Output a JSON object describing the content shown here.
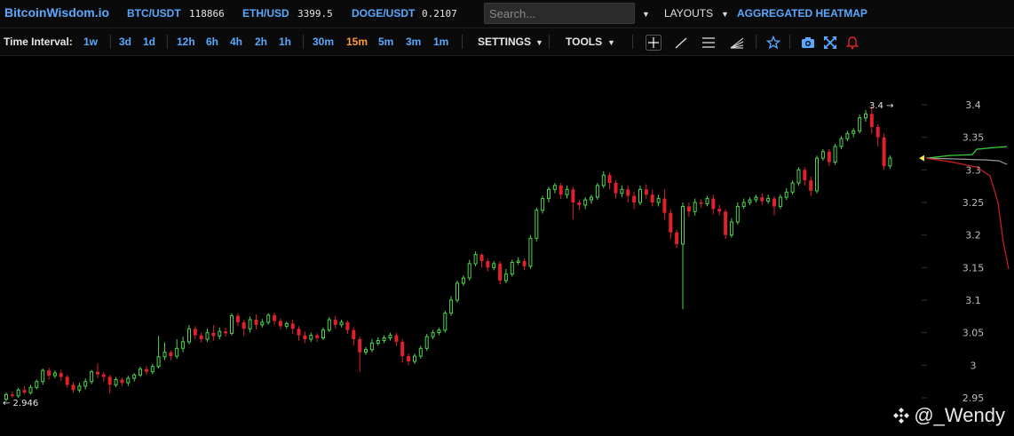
{
  "header": {
    "logo": "BitcoinWisdom.io",
    "tickers": [
      {
        "name": "BTC/USDT",
        "value": "118866"
      },
      {
        "name": "ETH/USD",
        "value": "3399.5"
      },
      {
        "name": "DOGE/USDT",
        "value": "0.2107"
      }
    ],
    "search_placeholder": "Search...",
    "layouts_label": "LAYOUTS",
    "heatmap_label": "AGGREGATED HEATMAP"
  },
  "toolbar": {
    "time_interval_label": "Time Interval:",
    "intervals": [
      "1w",
      "3d",
      "1d",
      "12h",
      "6h",
      "4h",
      "2h",
      "1h",
      "30m",
      "15m",
      "5m",
      "3m",
      "1m"
    ],
    "active_interval": "15m",
    "settings_label": "SETTINGS",
    "tools_label": "TOOLS",
    "icons": [
      "crosshair-icon",
      "line-icon",
      "horizontal-lines-icon",
      "fib-fan-icon",
      "star-icon",
      "camera-icon",
      "fullscreen-icon",
      "alarm-icon"
    ]
  },
  "colors": {
    "up": "#4cd44c",
    "down": "#e0202a",
    "accent": "#5aa9ff",
    "active_interval": "#ff9a3c",
    "bid_line": "#3bd13b",
    "ask_line": "#d41f1f",
    "mid_line": "#9a9a9a"
  },
  "chart_data": {
    "type": "candlestick",
    "y_ticks": [
      "3.4",
      "3.35",
      "3.3",
      "3.25",
      "3.2",
      "3.15",
      "3.1",
      "3.05",
      "3",
      "2.95"
    ],
    "ylim": [
      2.93,
      3.43
    ],
    "high_marker": "3.4 →",
    "low_marker": "← 2.946",
    "candles": [
      [
        2.948,
        2.955,
        2.944,
        2.958
      ],
      [
        2.955,
        2.953,
        2.95,
        2.96
      ],
      [
        2.953,
        2.962,
        2.95,
        2.965
      ],
      [
        2.962,
        2.958,
        2.955,
        2.968
      ],
      [
        2.958,
        2.966,
        2.955,
        2.97
      ],
      [
        2.966,
        2.975,
        2.963,
        2.978
      ],
      [
        2.975,
        2.992,
        2.97,
        2.995
      ],
      [
        2.992,
        2.984,
        2.978,
        2.996
      ],
      [
        2.984,
        2.988,
        2.98,
        2.992
      ],
      [
        2.988,
        2.982,
        2.976,
        2.993
      ],
      [
        2.982,
        2.97,
        2.966,
        2.985
      ],
      [
        2.97,
        2.962,
        2.958,
        2.974
      ],
      [
        2.962,
        2.968,
        2.958,
        2.973
      ],
      [
        2.968,
        2.975,
        2.963,
        2.98
      ],
      [
        2.975,
        2.99,
        2.971,
        2.993
      ],
      [
        2.99,
        2.986,
        2.98,
        3.003
      ],
      [
        2.986,
        2.982,
        2.975,
        2.99
      ],
      [
        2.982,
        2.97,
        2.957,
        2.985
      ],
      [
        2.97,
        2.978,
        2.966,
        2.982
      ],
      [
        2.978,
        2.973,
        2.968,
        2.981
      ],
      [
        2.973,
        2.98,
        2.968,
        2.984
      ],
      [
        2.98,
        2.985,
        2.975,
        2.988
      ],
      [
        2.985,
        2.994,
        2.982,
        2.998
      ],
      [
        2.994,
        2.99,
        2.985,
        2.999
      ],
      [
        2.99,
        2.998,
        2.986,
        3.002
      ],
      [
        2.998,
        3.013,
        2.995,
        3.045
      ],
      [
        3.013,
        3.02,
        3.008,
        3.035
      ],
      [
        3.02,
        3.014,
        3.008,
        3.023
      ],
      [
        3.014,
        3.026,
        3.01,
        3.04
      ],
      [
        3.026,
        3.036,
        3.02,
        3.044
      ],
      [
        3.036,
        3.056,
        3.032,
        3.062
      ],
      [
        3.056,
        3.046,
        3.04,
        3.06
      ],
      [
        3.046,
        3.04,
        3.035,
        3.05
      ],
      [
        3.04,
        3.05,
        3.036,
        3.056
      ],
      [
        3.05,
        3.045,
        3.038,
        3.062
      ],
      [
        3.045,
        3.052,
        3.04,
        3.058
      ],
      [
        3.052,
        3.049,
        3.044,
        3.058
      ],
      [
        3.049,
        3.076,
        3.046,
        3.08
      ],
      [
        3.076,
        3.066,
        3.06,
        3.08
      ],
      [
        3.066,
        3.056,
        3.045,
        3.07
      ],
      [
        3.056,
        3.07,
        3.05,
        3.075
      ],
      [
        3.07,
        3.062,
        3.055,
        3.078
      ],
      [
        3.062,
        3.066,
        3.058,
        3.071
      ],
      [
        3.066,
        3.077,
        3.062,
        3.08
      ],
      [
        3.077,
        3.068,
        3.062,
        3.081
      ],
      [
        3.068,
        3.06,
        3.055,
        3.072
      ],
      [
        3.06,
        3.064,
        3.056,
        3.067
      ],
      [
        3.064,
        3.056,
        3.048,
        3.07
      ],
      [
        3.056,
        3.046,
        3.038,
        3.06
      ],
      [
        3.046,
        3.04,
        3.034,
        3.052
      ],
      [
        3.04,
        3.046,
        3.036,
        3.05
      ],
      [
        3.046,
        3.042,
        3.036,
        3.049
      ],
      [
        3.042,
        3.054,
        3.039,
        3.058
      ],
      [
        3.054,
        3.07,
        3.051,
        3.074
      ],
      [
        3.07,
        3.062,
        3.056,
        3.076
      ],
      [
        3.062,
        3.066,
        3.058,
        3.07
      ],
      [
        3.066,
        3.054,
        3.048,
        3.069
      ],
      [
        3.054,
        3.04,
        3.03,
        3.058
      ],
      [
        3.04,
        3.02,
        2.99,
        3.044
      ],
      [
        3.02,
        3.024,
        3.016,
        3.028
      ],
      [
        3.024,
        3.034,
        3.02,
        3.04
      ],
      [
        3.034,
        3.038,
        3.03,
        3.043
      ],
      [
        3.038,
        3.042,
        3.034,
        3.046
      ],
      [
        3.042,
        3.046,
        3.038,
        3.05
      ],
      [
        3.046,
        3.036,
        3.03,
        3.05
      ],
      [
        3.036,
        3.014,
        3.004,
        3.04
      ],
      [
        3.014,
        3.006,
        3.0,
        3.018
      ],
      [
        3.006,
        3.014,
        3.002,
        3.018
      ],
      [
        3.014,
        3.026,
        3.01,
        3.03
      ],
      [
        3.026,
        3.044,
        3.022,
        3.048
      ],
      [
        3.044,
        3.05,
        3.04,
        3.054
      ],
      [
        3.05,
        3.054,
        3.046,
        3.058
      ],
      [
        3.054,
        3.08,
        3.05,
        3.084
      ],
      [
        3.08,
        3.1,
        3.076,
        3.106
      ],
      [
        3.1,
        3.126,
        3.096,
        3.13
      ],
      [
        3.126,
        3.134,
        3.122,
        3.138
      ],
      [
        3.134,
        3.156,
        3.13,
        3.162
      ],
      [
        3.156,
        3.17,
        3.152,
        3.175
      ],
      [
        3.17,
        3.16,
        3.15,
        3.172
      ],
      [
        3.16,
        3.15,
        3.144,
        3.164
      ],
      [
        3.15,
        3.156,
        3.146,
        3.16
      ],
      [
        3.156,
        3.13,
        3.124,
        3.16
      ],
      [
        3.13,
        3.14,
        3.126,
        3.148
      ],
      [
        3.14,
        3.158,
        3.136,
        3.162
      ],
      [
        3.158,
        3.16,
        3.154,
        3.166
      ],
      [
        3.16,
        3.152,
        3.146,
        3.164
      ],
      [
        3.152,
        3.195,
        3.148,
        3.2
      ],
      [
        3.195,
        3.238,
        3.19,
        3.242
      ],
      [
        3.238,
        3.256,
        3.233,
        3.26
      ],
      [
        3.256,
        3.27,
        3.25,
        3.274
      ],
      [
        3.27,
        3.276,
        3.264,
        3.28
      ],
      [
        3.276,
        3.262,
        3.255,
        3.28
      ],
      [
        3.262,
        3.27,
        3.256,
        3.276
      ],
      [
        3.27,
        3.25,
        3.224,
        3.274
      ],
      [
        3.25,
        3.246,
        3.238,
        3.254
      ],
      [
        3.246,
        3.254,
        3.24,
        3.258
      ],
      [
        3.254,
        3.258,
        3.248,
        3.262
      ],
      [
        3.258,
        3.276,
        3.254,
        3.28
      ],
      [
        3.276,
        3.292,
        3.272,
        3.298
      ],
      [
        3.292,
        3.28,
        3.27,
        3.296
      ],
      [
        3.28,
        3.264,
        3.256,
        3.284
      ],
      [
        3.264,
        3.27,
        3.258,
        3.276
      ],
      [
        3.27,
        3.26,
        3.25,
        3.276
      ],
      [
        3.26,
        3.25,
        3.24,
        3.266
      ],
      [
        3.25,
        3.27,
        3.246,
        3.276
      ],
      [
        3.27,
        3.262,
        3.256,
        3.278
      ],
      [
        3.262,
        3.25,
        3.244,
        3.27
      ],
      [
        3.25,
        3.256,
        3.244,
        3.262
      ],
      [
        3.256,
        3.234,
        3.224,
        3.27
      ],
      [
        3.234,
        3.204,
        3.194,
        3.24
      ],
      [
        3.204,
        3.186,
        3.18,
        3.208
      ],
      [
        3.186,
        3.244,
        3.086,
        3.25
      ],
      [
        3.244,
        3.236,
        3.228,
        3.25
      ],
      [
        3.236,
        3.25,
        3.23,
        3.256
      ],
      [
        3.25,
        3.248,
        3.242,
        3.255
      ],
      [
        3.248,
        3.256,
        3.244,
        3.26
      ],
      [
        3.256,
        3.24,
        3.232,
        3.262
      ],
      [
        3.24,
        3.236,
        3.23,
        3.246
      ],
      [
        3.236,
        3.2,
        3.194,
        3.24
      ],
      [
        3.2,
        3.22,
        3.196,
        3.226
      ],
      [
        3.22,
        3.244,
        3.216,
        3.25
      ],
      [
        3.244,
        3.25,
        3.24,
        3.256
      ],
      [
        3.25,
        3.254,
        3.246,
        3.258
      ],
      [
        3.254,
        3.258,
        3.25,
        3.262
      ],
      [
        3.258,
        3.252,
        3.246,
        3.264
      ],
      [
        3.252,
        3.256,
        3.248,
        3.262
      ],
      [
        3.256,
        3.244,
        3.23,
        3.26
      ],
      [
        3.244,
        3.258,
        3.24,
        3.262
      ],
      [
        3.258,
        3.266,
        3.254,
        3.272
      ],
      [
        3.266,
        3.28,
        3.262,
        3.284
      ],
      [
        3.28,
        3.3,
        3.276,
        3.304
      ],
      [
        3.3,
        3.284,
        3.276,
        3.304
      ],
      [
        3.284,
        3.268,
        3.26,
        3.29
      ],
      [
        3.268,
        3.318,
        3.264,
        3.322
      ],
      [
        3.318,
        3.328,
        3.314,
        3.332
      ],
      [
        3.328,
        3.312,
        3.306,
        3.332
      ],
      [
        3.312,
        3.336,
        3.308,
        3.34
      ],
      [
        3.336,
        3.348,
        3.332,
        3.352
      ],
      [
        3.348,
        3.356,
        3.344,
        3.36
      ],
      [
        3.356,
        3.36,
        3.35,
        3.364
      ],
      [
        3.36,
        3.38,
        3.356,
        3.385
      ],
      [
        3.38,
        3.386,
        3.374,
        3.392
      ],
      [
        3.386,
        3.366,
        3.356,
        3.398
      ],
      [
        3.366,
        3.35,
        3.336,
        3.37
      ],
      [
        3.35,
        3.306,
        3.3,
        3.356
      ],
      [
        3.306,
        3.318,
        3.302,
        3.322
      ]
    ]
  },
  "watermark": "@_Wendy"
}
